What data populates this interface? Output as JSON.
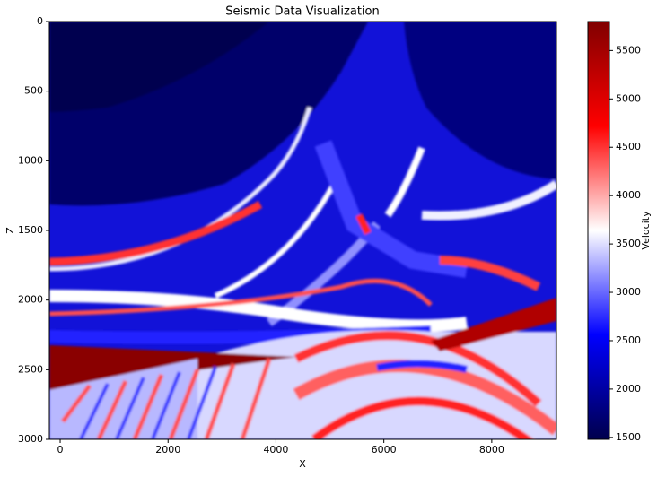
{
  "chart_data": {
    "type": "heatmap",
    "title": "Seismic Data Visualization",
    "x_label": "X",
    "y_label": "Z",
    "xlim": [
      -200,
      9200
    ],
    "xticks": [
      0,
      2000,
      4000,
      6000,
      8000
    ],
    "ylim": [
      3000,
      0
    ],
    "yticks": [
      0,
      500,
      1000,
      1500,
      2000,
      2500,
      3000
    ],
    "colorbar": {
      "label": "Velocity",
      "lim": [
        1480,
        5800
      ],
      "ticks": [
        1500,
        2000,
        2500,
        3000,
        3500,
        4000,
        4500,
        5000,
        5500
      ],
      "colormap": [
        "#00004c",
        "#0000ff",
        "#ffffff",
        "#ff0000",
        "#800000"
      ]
    }
  }
}
